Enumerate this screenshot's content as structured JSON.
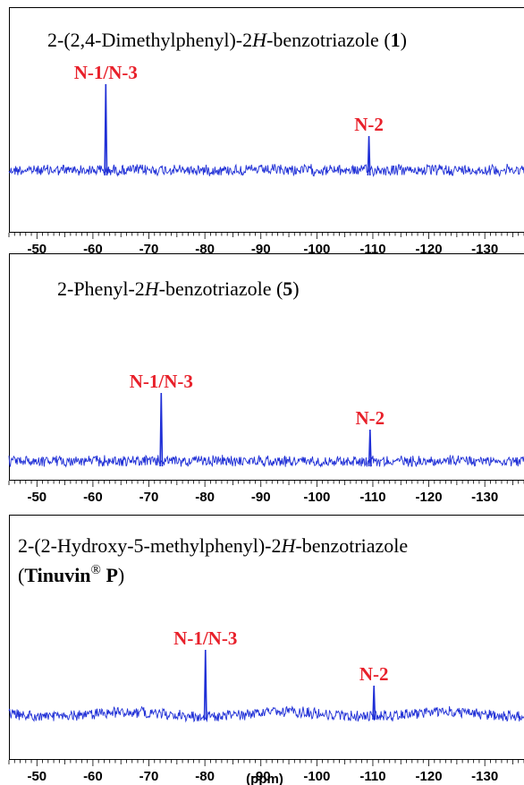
{
  "chart_data": [
    {
      "type": "line",
      "title_parts": [
        {
          "text": "2-(2,4-Dimethylphenyl)-2",
          "style": "normal"
        },
        {
          "text": "H",
          "style": "italic"
        },
        {
          "text": "-benzotriazole (",
          "style": "normal"
        },
        {
          "text": "1",
          "style": "bold"
        },
        {
          "text": ")",
          "style": "normal"
        }
      ],
      "title_line2_parts": [],
      "xlabel": "",
      "xlim": [
        -45,
        -137
      ],
      "x_ticks": [
        -50,
        -60,
        -70,
        -80,
        -90,
        -100,
        -110,
        -120,
        -130
      ],
      "series_color": "#1f2fd6",
      "peaks": [
        {
          "label": "N-1/N-3",
          "x": -62.3,
          "height": 0.9
        },
        {
          "label": "N-2",
          "x": -109.3,
          "height": 0.3
        }
      ]
    },
    {
      "type": "line",
      "title_parts": [
        {
          "text": "2-Phenyl-2",
          "style": "normal"
        },
        {
          "text": "H",
          "style": "italic"
        },
        {
          "text": "-benzotriazole (",
          "style": "normal"
        },
        {
          "text": "5",
          "style": "bold"
        },
        {
          "text": ")",
          "style": "normal"
        }
      ],
      "title_line2_parts": [],
      "xlabel": "",
      "xlim": [
        -45,
        -137
      ],
      "x_ticks": [
        -50,
        -60,
        -70,
        -80,
        -90,
        -100,
        -110,
        -120,
        -130
      ],
      "series_color": "#1f2fd6",
      "peaks": [
        {
          "label": "N-1/N-3",
          "x": -72.2,
          "height": 0.92
        },
        {
          "label": "N-2",
          "x": -109.5,
          "height": 0.22
        }
      ]
    },
    {
      "type": "line",
      "title_parts": [
        {
          "text": "2-(2-Hydroxy-5-methylphenyl)-2",
          "style": "normal"
        },
        {
          "text": "H",
          "style": "italic"
        },
        {
          "text": "-benzotriazole",
          "style": "normal"
        }
      ],
      "title_line2_parts": [
        {
          "text": "(",
          "style": "normal"
        },
        {
          "text": "Tinuvin",
          "style": "bold"
        },
        {
          "text": "®",
          "style": "sup"
        },
        {
          "text": " P",
          "style": "bold"
        },
        {
          "text": ")",
          "style": "normal"
        }
      ],
      "xlabel": "(ppm)",
      "xlim": [
        -45,
        -137
      ],
      "x_ticks": [
        -50,
        -60,
        -70,
        -80,
        -90,
        -100,
        -110,
        -120,
        -130
      ],
      "series_color": "#1f2fd6",
      "peaks": [
        {
          "label": "N-1/N-3",
          "x": -80.1,
          "height": 0.88
        },
        {
          "label": "N-2",
          "x": -110.2,
          "height": 0.36
        }
      ]
    }
  ]
}
